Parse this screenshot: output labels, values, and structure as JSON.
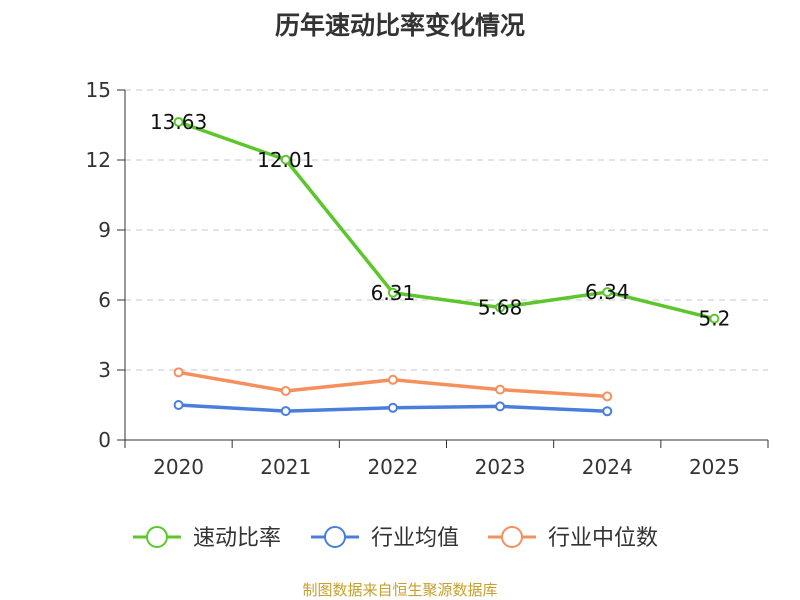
{
  "chart_data": {
    "type": "line",
    "title": "历年速动比率变化情况",
    "categories": [
      "2020",
      "2021",
      "2022",
      "2023",
      "2024",
      "2025"
    ],
    "ylim": [
      0,
      15
    ],
    "yticks": [
      0,
      3,
      6,
      9,
      12,
      15
    ],
    "grid": true,
    "legend_position": "bottom",
    "series": [
      {
        "name": "速动比率",
        "color": "#5cc72c",
        "values": [
          13.63,
          12.01,
          6.31,
          5.68,
          6.34,
          5.2
        ],
        "labels": [
          "13.63",
          "12.01",
          "6.31",
          "5.68",
          "6.34",
          "5.2"
        ]
      },
      {
        "name": "行业均值",
        "color": "#4a7edc",
        "values": [
          1.5,
          1.24,
          1.38,
          1.44,
          1.23,
          null
        ]
      },
      {
        "name": "行业中位数",
        "color": "#f58f5c",
        "values": [
          2.9,
          2.1,
          2.58,
          2.16,
          1.87,
          null
        ]
      }
    ]
  },
  "source_note": "制图数据来自恒生聚源数据库"
}
